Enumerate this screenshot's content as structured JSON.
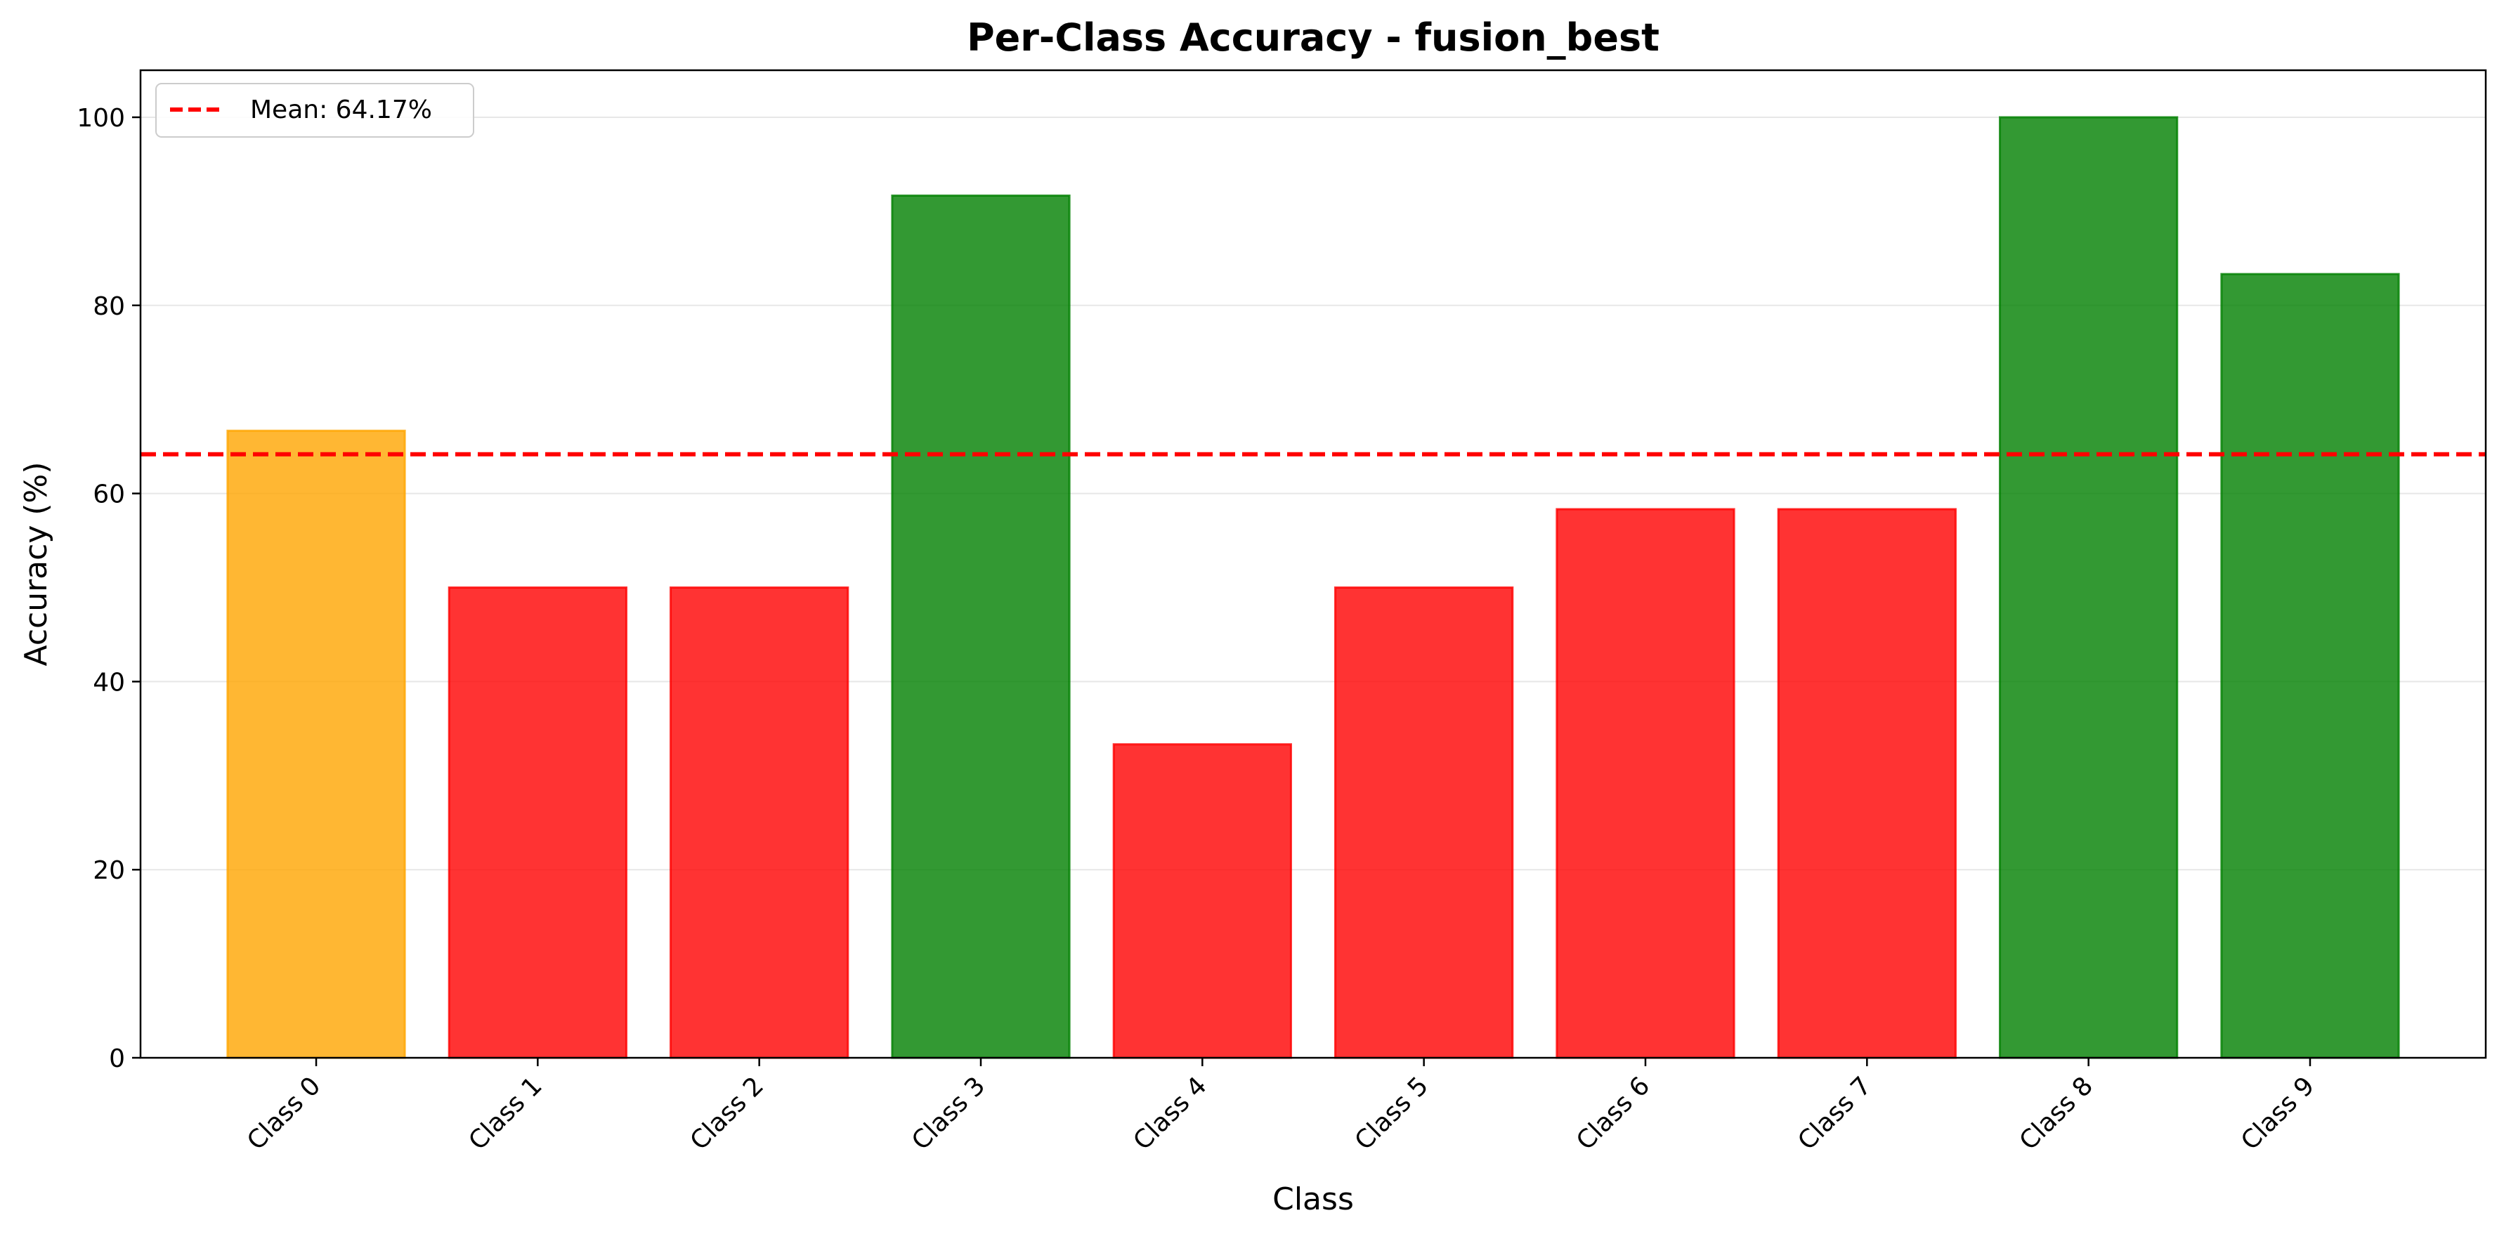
{
  "chart_data": {
    "type": "bar",
    "title": "Per-Class Accuracy - fusion_best",
    "xlabel": "Class",
    "ylabel": "Accuracy (%)",
    "categories": [
      "Class 0",
      "Class 1",
      "Class 2",
      "Class 3",
      "Class 4",
      "Class 5",
      "Class 6",
      "Class 7",
      "Class 8",
      "Class 9"
    ],
    "values": [
      66.67,
      50.0,
      50.0,
      91.67,
      33.33,
      50.0,
      58.33,
      58.33,
      100.0,
      83.33
    ],
    "bar_colors": [
      "#FFA500",
      "#FF0000",
      "#FF0000",
      "#008000",
      "#FF0000",
      "#FF0000",
      "#FF0000",
      "#FF0000",
      "#008000",
      "#008000"
    ],
    "bar_opacity": 0.8,
    "ylim": [
      0,
      105
    ],
    "yticks": [
      0,
      20,
      40,
      60,
      80,
      100
    ],
    "grid": "y",
    "mean_line": {
      "value": 64.17,
      "color": "#FF0000",
      "style": "dashed",
      "label": "Mean: 64.17%"
    },
    "legend_position": "top-left"
  }
}
